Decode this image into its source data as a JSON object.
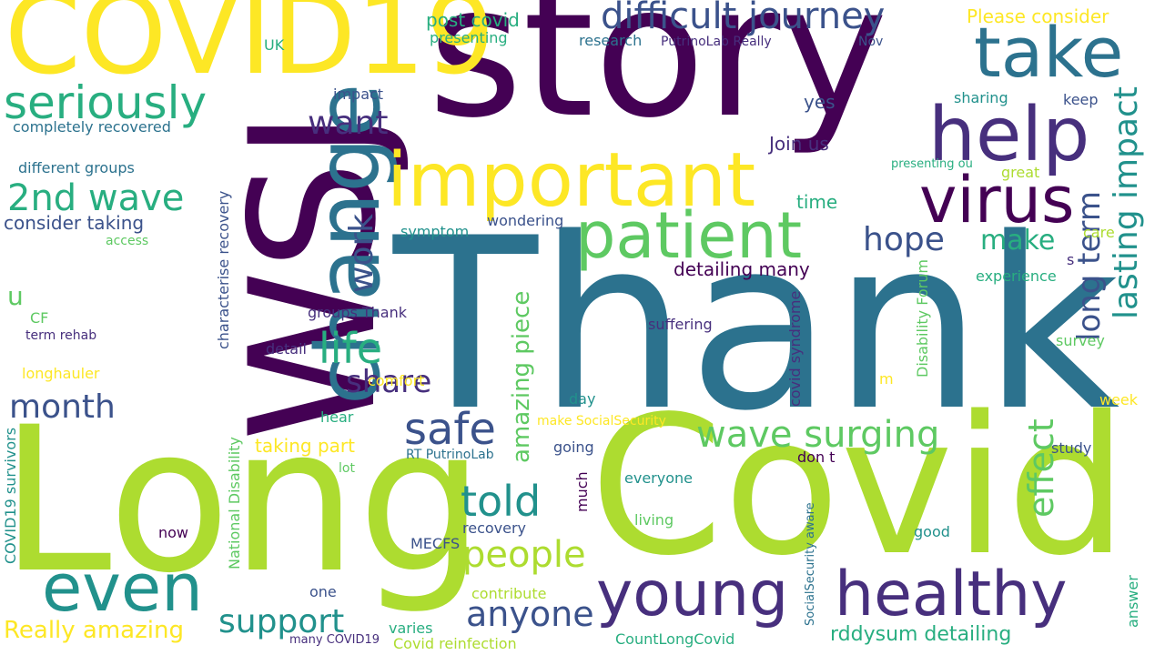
{
  "palette": {
    "dark_purple": "#440154",
    "indigo": "#472f7d",
    "blue": "#3b528b",
    "steel": "#2c728e",
    "teal": "#21918c",
    "green": "#28ae80",
    "light_green": "#5ec962",
    "lime": "#addc30",
    "yellow": "#fde725"
  },
  "words": [
    {
      "text": "Thank"
    },
    {
      "text": "Long"
    },
    {
      "text": "Covid"
    },
    {
      "text": "story"
    },
    {
      "text": "WSJ"
    },
    {
      "text": "COVID19"
    },
    {
      "text": "change"
    },
    {
      "text": "important"
    },
    {
      "text": "help"
    },
    {
      "text": "take"
    },
    {
      "text": "virus"
    },
    {
      "text": "patient"
    },
    {
      "text": "young"
    },
    {
      "text": "healthy"
    },
    {
      "text": "even"
    },
    {
      "text": "difficult journey"
    },
    {
      "text": "seriously"
    },
    {
      "text": "2nd wave"
    },
    {
      "text": "wave surging"
    },
    {
      "text": "life"
    },
    {
      "text": "safe"
    },
    {
      "text": "told"
    },
    {
      "text": "people"
    },
    {
      "text": "lasting impact"
    },
    {
      "text": "long term"
    },
    {
      "text": "effect"
    },
    {
      "text": "month"
    },
    {
      "text": "anyone"
    },
    {
      "text": "support"
    },
    {
      "text": "want"
    },
    {
      "text": "hope"
    },
    {
      "text": "share"
    },
    {
      "text": "work"
    },
    {
      "text": "make"
    },
    {
      "text": "amazing piece"
    },
    {
      "text": "Really amazing"
    },
    {
      "text": "rddysum detailing"
    },
    {
      "text": "detailing many"
    },
    {
      "text": "Please consider"
    },
    {
      "text": "post covid"
    },
    {
      "text": "consider taking"
    },
    {
      "text": "taking part"
    },
    {
      "text": "Join us"
    },
    {
      "text": "u"
    },
    {
      "text": "presenting"
    },
    {
      "text": "research"
    },
    {
      "text": "PutrinoLab Really"
    },
    {
      "text": "Nov"
    },
    {
      "text": "UK"
    },
    {
      "text": "impact"
    },
    {
      "text": "completely recovered"
    },
    {
      "text": "different groups"
    },
    {
      "text": "yes"
    },
    {
      "text": "sharing"
    },
    {
      "text": "keep"
    },
    {
      "text": "presenting ou"
    },
    {
      "text": "great"
    },
    {
      "text": "time"
    },
    {
      "text": "wondering"
    },
    {
      "text": "symptom"
    },
    {
      "text": "access"
    },
    {
      "text": "care"
    },
    {
      "text": "characterise recovery"
    },
    {
      "text": "covid syndrome"
    },
    {
      "text": "Disability Forum"
    },
    {
      "text": "groups Thank"
    },
    {
      "text": "experience"
    },
    {
      "text": "s"
    },
    {
      "text": "CF"
    },
    {
      "text": "term rehab"
    },
    {
      "text": "suffering"
    },
    {
      "text": "detail"
    },
    {
      "text": "survey"
    },
    {
      "text": "longhauler"
    },
    {
      "text": "comfort"
    },
    {
      "text": "m"
    },
    {
      "text": "day"
    },
    {
      "text": "week"
    },
    {
      "text": "hear"
    },
    {
      "text": "make SocialSecurity"
    },
    {
      "text": "National Disability"
    },
    {
      "text": "COVID19 survivors"
    },
    {
      "text": "RT PutrinoLab"
    },
    {
      "text": "going"
    },
    {
      "text": "don t"
    },
    {
      "text": "study"
    },
    {
      "text": "lot"
    },
    {
      "text": "much"
    },
    {
      "text": "everyone"
    },
    {
      "text": "now"
    },
    {
      "text": "recovery"
    },
    {
      "text": "living"
    },
    {
      "text": "SocialSecurity aware"
    },
    {
      "text": "good"
    },
    {
      "text": "MECFS"
    },
    {
      "text": "one"
    },
    {
      "text": "contribute"
    },
    {
      "text": "answer"
    },
    {
      "text": "varies"
    },
    {
      "text": "many COVID19"
    },
    {
      "text": "Covid reinfection"
    },
    {
      "text": "CountLongCovid"
    }
  ]
}
